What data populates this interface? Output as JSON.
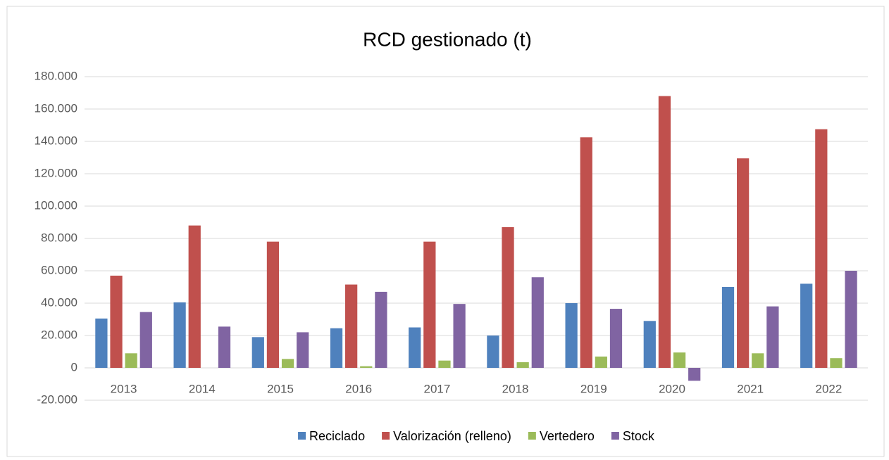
{
  "chart_data": {
    "type": "bar",
    "title": "RCD gestionado (t)",
    "categories": [
      "2013",
      "2014",
      "2015",
      "2016",
      "2017",
      "2018",
      "2019",
      "2020",
      "2021",
      "2022"
    ],
    "series": [
      {
        "name": "Reciclado",
        "color": "#4f81bd",
        "values": [
          30500,
          40500,
          19000,
          24500,
          25000,
          20000,
          40000,
          29000,
          50000,
          52000
        ]
      },
      {
        "name": "Valorización (relleno)",
        "color": "#c0504d",
        "values": [
          57000,
          88000,
          78000,
          51500,
          78000,
          87000,
          142500,
          168000,
          129500,
          147500
        ]
      },
      {
        "name": "Vertedero",
        "color": "#9bbb59",
        "values": [
          9000,
          0,
          5500,
          1000,
          4500,
          3500,
          7000,
          9500,
          9000,
          6000
        ]
      },
      {
        "name": "Stock",
        "color": "#8064a2",
        "values": [
          34500,
          25500,
          22000,
          47000,
          39500,
          56000,
          36500,
          -8000,
          38000,
          60000
        ]
      }
    ],
    "ylim": [
      -20000,
      180000
    ],
    "yticks": [
      {
        "value": -20000,
        "label": "-20.000"
      },
      0,
      {
        "value": 20000,
        "label": "20.000"
      },
      {
        "value": 40000,
        "label": "40.000"
      },
      {
        "value": 60000,
        "label": "60.000"
      },
      {
        "value": 80000,
        "label": "80.000"
      },
      {
        "value": 100000,
        "label": "100.000"
      },
      {
        "value": 120000,
        "label": "120.000"
      },
      {
        "value": 140000,
        "label": "140.000"
      },
      {
        "value": 160000,
        "label": "160.000"
      },
      {
        "value": 180000,
        "label": "180.000"
      }
    ],
    "grid": true,
    "legend": "bottom"
  }
}
